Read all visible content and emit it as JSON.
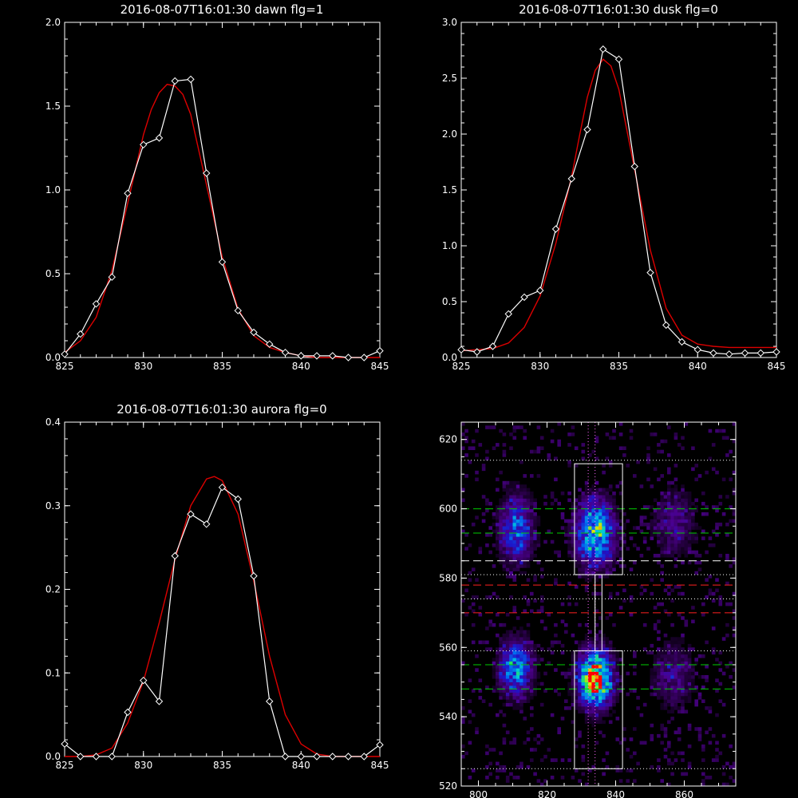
{
  "chart_data": [
    {
      "type": "line",
      "title": "2016-08-07T16:01:30 dawn flg=1",
      "xlim": [
        825,
        845
      ],
      "ylim": [
        0,
        2
      ],
      "xticks": [
        "825",
        "830",
        "835",
        "840",
        "845"
      ],
      "yticks": [
        "0.0",
        "0.5",
        "1.0",
        "1.5",
        "2.0"
      ],
      "colors": {
        "observed": "#ffffff",
        "fit": "#dd0000"
      },
      "series": [
        {
          "values_x": [
            825,
            826,
            827,
            828,
            829,
            830,
            831,
            832,
            833,
            834,
            835,
            836,
            837,
            838,
            839,
            840,
            841,
            842,
            843,
            844,
            845
          ],
          "values_y": [
            0.02,
            0.14,
            0.32,
            0.48,
            0.98,
            1.27,
            1.31,
            1.65,
            1.66,
            1.1,
            0.57,
            0.28,
            0.15,
            0.08,
            0.03,
            0.01,
            0.01,
            0.01,
            0.0,
            0.0,
            0.04
          ],
          "markers": true
        },
        {
          "values_x": [
            825,
            826,
            827,
            828,
            829,
            830,
            830.5,
            831,
            831.5,
            832,
            832.5,
            833,
            834,
            835,
            836,
            837,
            838,
            839,
            840,
            841,
            842,
            843,
            844,
            845
          ],
          "values_y": [
            0.03,
            0.1,
            0.24,
            0.52,
            0.92,
            1.33,
            1.48,
            1.58,
            1.63,
            1.62,
            1.57,
            1.45,
            1.03,
            0.6,
            0.29,
            0.13,
            0.06,
            0.03,
            0.01,
            0.0,
            0.0,
            0.0,
            0.0,
            0.0
          ],
          "markers": false
        }
      ]
    },
    {
      "type": "line",
      "title": "2016-08-07T16:01:30 dusk flg=0",
      "xlim": [
        825,
        845
      ],
      "ylim": [
        0,
        3
      ],
      "xticks": [
        "825",
        "830",
        "835",
        "840",
        "845"
      ],
      "yticks": [
        "0.0",
        "0.5",
        "1.0",
        "1.5",
        "2.0",
        "2.5",
        "3.0"
      ],
      "colors": {
        "observed": "#ffffff",
        "fit": "#dd0000"
      },
      "series": [
        {
          "values_x": [
            825,
            826,
            827,
            828,
            829,
            830,
            831,
            832,
            833,
            834,
            835,
            836,
            837,
            838,
            839,
            840,
            841,
            842,
            843,
            844,
            845
          ],
          "values_y": [
            0.07,
            0.05,
            0.1,
            0.39,
            0.54,
            0.6,
            1.15,
            1.6,
            2.04,
            2.76,
            2.67,
            1.71,
            0.76,
            0.29,
            0.14,
            0.07,
            0.04,
            0.03,
            0.04,
            0.04,
            0.05
          ],
          "markers": true
        },
        {
          "values_x": [
            825,
            826,
            827,
            828,
            829,
            830,
            831,
            832,
            832.5,
            833,
            833.5,
            834,
            834.5,
            835,
            836,
            837,
            838,
            839,
            840,
            841,
            842,
            843,
            844,
            845
          ],
          "values_y": [
            0.06,
            0.07,
            0.08,
            0.13,
            0.27,
            0.55,
            1.02,
            1.62,
            1.98,
            2.33,
            2.57,
            2.67,
            2.61,
            2.4,
            1.68,
            0.96,
            0.44,
            0.2,
            0.12,
            0.1,
            0.09,
            0.09,
            0.09,
            0.09
          ],
          "markers": false
        }
      ]
    },
    {
      "type": "line",
      "title": "2016-08-07T16:01:30 aurora flg=0",
      "xlim": [
        825,
        845
      ],
      "ylim": [
        0,
        0.4
      ],
      "xticks": [
        "825",
        "830",
        "835",
        "840",
        "845"
      ],
      "yticks": [
        "0.0",
        "0.1",
        "0.2",
        "0.3",
        "0.4"
      ],
      "colors": {
        "observed": "#ffffff",
        "fit": "#dd0000"
      },
      "series": [
        {
          "values_x": [
            825,
            826,
            827,
            828,
            829,
            830,
            831,
            832,
            833,
            834,
            835,
            836,
            837,
            838,
            839,
            840,
            841,
            842,
            843,
            844,
            845
          ],
          "values_y": [
            0.015,
            0.0,
            0.0,
            0.0,
            0.053,
            0.091,
            0.066,
            0.24,
            0.29,
            0.278,
            0.322,
            0.308,
            0.216,
            0.066,
            0.0,
            0.0,
            0.0,
            0.0,
            0.0,
            0.0,
            0.014
          ],
          "markers": true
        },
        {
          "values_x": [
            825,
            826,
            827,
            828,
            829,
            830,
            831,
            832,
            833,
            834,
            834.5,
            835,
            836,
            837,
            838,
            839,
            840,
            841,
            842,
            843,
            844,
            845
          ],
          "values_y": [
            0.0,
            0.0,
            0.002,
            0.01,
            0.04,
            0.09,
            0.16,
            0.236,
            0.3,
            0.332,
            0.335,
            0.33,
            0.29,
            0.21,
            0.12,
            0.05,
            0.015,
            0.003,
            0.0,
            0.0,
            0.0,
            0.0
          ],
          "markers": false
        }
      ]
    },
    {
      "type": "heatmap",
      "xlim": [
        795,
        875
      ],
      "ylim": [
        520,
        625
      ],
      "xticks": [
        "800",
        "820",
        "840",
        "860"
      ],
      "yticks": [
        "520",
        "540",
        "560",
        "580",
        "600",
        "620"
      ],
      "colors": {
        "dotted": "#ffffff",
        "dashed_green": "#00cc00",
        "dashed_red": "#ff2020",
        "dashed_white": "#ffffff",
        "vertical": "#ff66ff"
      },
      "blobs": [
        {
          "x": 811,
          "y": 594,
          "sx": 3,
          "sy": 6,
          "peak": 0.42
        },
        {
          "x": 811,
          "y": 554,
          "sx": 3,
          "sy": 5,
          "peak": 0.5
        },
        {
          "x": 834,
          "y": 593,
          "sx": 3.5,
          "sy": 6,
          "peak": 0.62
        },
        {
          "x": 834,
          "y": 551,
          "sx": 3,
          "sy": 5,
          "peak": 1.0
        },
        {
          "x": 857,
          "y": 596,
          "sx": 4,
          "sy": 6,
          "peak": 0.16
        },
        {
          "x": 857,
          "y": 552,
          "sx": 4,
          "sy": 6,
          "peak": 0.16
        }
      ],
      "boxes": [
        {
          "x0": 828,
          "x1": 842,
          "y0": 581,
          "y1": 613
        },
        {
          "x0": 828,
          "x1": 842,
          "y0": 525,
          "y1": 559
        },
        {
          "x0": 834,
          "x1": 836,
          "y0": 559,
          "y1": 581
        }
      ],
      "hlines": [
        {
          "y": 614,
          "style": "dotted",
          "color": "#ffffff"
        },
        {
          "y": 600,
          "style": "dashed",
          "color": "#00cc00"
        },
        {
          "y": 593,
          "style": "dashed",
          "color": "#00cc00"
        },
        {
          "y": 585,
          "style": "dashed",
          "color": "#ffffff"
        },
        {
          "y": 581,
          "style": "dotted",
          "color": "#ffffff"
        },
        {
          "y": 578,
          "style": "dashed",
          "color": "#ff2020"
        },
        {
          "y": 574,
          "style": "dotted",
          "color": "#ffffff"
        },
        {
          "y": 570,
          "style": "dashed",
          "color": "#ff2020"
        },
        {
          "y": 559,
          "style": "dotted",
          "color": "#ffffff"
        },
        {
          "y": 555,
          "style": "dashed",
          "color": "#00cc00"
        },
        {
          "y": 548,
          "style": "dashed",
          "color": "#00cc00"
        },
        {
          "y": 525,
          "style": "dotted",
          "color": "#ffffff"
        }
      ],
      "vlines": [
        {
          "x": 832,
          "style": "dotted",
          "color": "#ff66ff"
        },
        {
          "x": 834,
          "style": "dotted",
          "color": "#ff66ff"
        }
      ]
    }
  ]
}
